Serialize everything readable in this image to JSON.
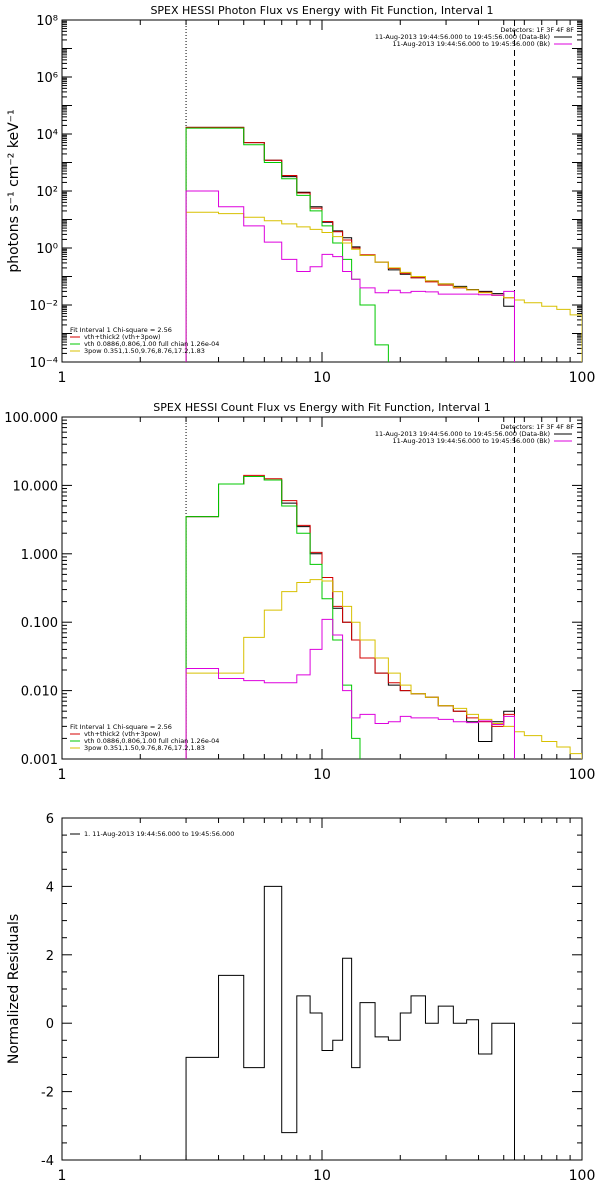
{
  "chart_data": [
    {
      "type": "line",
      "title": "SPEX HESSI Photon Flux vs Energy with Fit Function, Interval 1",
      "ylabel": "photons s⁻¹ cm⁻² keV⁻¹",
      "xlabel": "",
      "xscale": "log",
      "yscale": "log",
      "xlim": [
        1,
        100
      ],
      "ylim": [
        0.0001,
        100000000
      ],
      "x_tick_labels": [
        "1",
        "10",
        "100"
      ],
      "y_tick_labels": [
        "10⁻⁴",
        "10⁻²",
        "10⁰",
        "10²",
        "10⁴",
        "10⁶",
        "10⁸"
      ],
      "detectors_label": "Detectors: 1F 3F 4F 8F",
      "legend_right": [
        {
          "text": "11-Aug-2013 19:44:56.000 to 19:45:56.000 (Data-Bk)",
          "color": "#000000"
        },
        {
          "text": "11-Aug-2013 19:44:56.000 to 19:45:56.000 (Bk)",
          "color": "#dd00dd"
        }
      ],
      "legend_left": [
        {
          "text": "Fit Interval  1    Chi-square = 2.56",
          "color": null
        },
        {
          "text": "vth+thick2 (vth+3pow)",
          "color": "#d40000"
        },
        {
          "text": "vth 0.0886,0.806,1.00  full chian 1.26e-04",
          "color": "#00c800"
        },
        {
          "text": "3pow 0.351,1.50,9.76,8.76,17.2,1.83",
          "color": "#d8c000"
        }
      ],
      "vlines": [
        {
          "x": 3.0,
          "style": "dotted"
        },
        {
          "x": 55,
          "style": "dashed"
        }
      ],
      "series": [
        {
          "name": "Data-Bk",
          "color": "#000000",
          "bins": [
            3,
            4,
            5,
            6,
            7,
            8,
            9,
            10,
            11,
            12,
            13,
            14,
            16,
            18,
            20,
            22,
            25,
            28,
            32,
            36,
            40,
            45,
            50,
            55
          ],
          "values": [
            17000,
            17000,
            5000,
            1200,
            320,
            90,
            28,
            8,
            4,
            2.3,
            1.1,
            0.55,
            0.32,
            0.17,
            0.12,
            0.09,
            0.07,
            0.055,
            0.045,
            0.035,
            0.03,
            0.025,
            0.009
          ]
        },
        {
          "name": "Fit",
          "color": "#d40000",
          "bins": [
            3,
            4,
            5,
            6,
            7,
            8,
            9,
            10,
            11,
            12,
            13,
            14,
            16,
            18,
            20,
            22,
            25,
            28,
            32,
            36,
            40,
            45,
            50,
            55
          ],
          "values": [
            17000,
            17000,
            5000,
            1200,
            350,
            85,
            25,
            8.5,
            3.7,
            1.9,
            1.0,
            0.58,
            0.32,
            0.19,
            0.13,
            0.09,
            0.065,
            0.05,
            0.04,
            0.034,
            0.028,
            0.022,
            0.018
          ]
        },
        {
          "name": "vth",
          "color": "#00c800",
          "bins": [
            3,
            4,
            5,
            6,
            7,
            8,
            9,
            10,
            11,
            12,
            13,
            14,
            16,
            18
          ],
          "values": [
            16000,
            16000,
            4200,
            1000,
            270,
            70,
            20,
            6,
            1.5,
            0.4,
            0.08,
            0.01,
            0.0004
          ]
        },
        {
          "name": "3pow",
          "color": "#d8c000",
          "bins": [
            3,
            4,
            5,
            6,
            7,
            8,
            9,
            10,
            11,
            12,
            13,
            14,
            16,
            18,
            20,
            22,
            25,
            28,
            32,
            36,
            40,
            45,
            50,
            55,
            60,
            70,
            80,
            90,
            100
          ],
          "values": [
            18,
            16,
            12,
            9,
            7,
            5.5,
            4.5,
            3.5,
            2.5,
            1.5,
            0.9,
            0.55,
            0.32,
            0.2,
            0.14,
            0.1,
            0.07,
            0.055,
            0.042,
            0.034,
            0.027,
            0.022,
            0.018,
            0.015,
            0.012,
            0.009,
            0.007,
            0.0045
          ]
        },
        {
          "name": "Bk",
          "color": "#dd00dd",
          "bins": [
            3,
            4,
            5,
            6,
            7,
            8,
            9,
            10,
            11,
            12,
            13,
            14,
            16,
            18,
            20,
            22,
            25,
            28,
            32,
            36,
            40,
            45,
            50,
            55
          ],
          "values": [
            100,
            28,
            6,
            1.6,
            0.4,
            0.15,
            0.22,
            0.6,
            0.5,
            0.15,
            0.08,
            0.04,
            0.027,
            0.033,
            0.027,
            0.03,
            0.029,
            0.024,
            0.024,
            0.024,
            0.023,
            0.022,
            0.03
          ]
        }
      ]
    },
    {
      "type": "line",
      "title": "SPEX HESSI Count Flux vs Energy with Fit Function, Interval 1",
      "ylabel": "",
      "xlabel": "",
      "xscale": "log",
      "yscale": "log",
      "xlim": [
        1,
        100
      ],
      "ylim": [
        0.001,
        100
      ],
      "x_tick_labels": [
        "1",
        "10",
        "100"
      ],
      "y_tick_labels": [
        "0.001",
        "0.010",
        "0.100",
        "1.000",
        "10.000",
        "100.000"
      ],
      "detectors_label": "Detectors: 1F 3F 4F 8F",
      "legend_right": [
        {
          "text": "11-Aug-2013 19:44:56.000 to 19:45:56.000 (Data-Bk)",
          "color": "#000000"
        },
        {
          "text": "11-Aug-2013 19:44:56.000 to 19:45:56.000 (Bk)",
          "color": "#dd00dd"
        }
      ],
      "legend_left": [
        {
          "text": "Fit Interval  1    Chi-square = 2.56",
          "color": null
        },
        {
          "text": "vth+thick2 (vth+3pow)",
          "color": "#d40000"
        },
        {
          "text": "vth 0.0886,0.806,1.00  full chian 1.26e-04",
          "color": "#00c800"
        },
        {
          "text": "3pow 0.351,1.50,9.76,8.76,17.2,1.83",
          "color": "#d8c000"
        }
      ],
      "vlines": [
        {
          "x": 3.0,
          "style": "dotted"
        },
        {
          "x": 55,
          "style": "dashed"
        }
      ],
      "series": [
        {
          "name": "Data-Bk",
          "color": "#000000",
          "bins": [
            3,
            4,
            5,
            6,
            7,
            8,
            9,
            10,
            11,
            12,
            13,
            14,
            16,
            18,
            20,
            22,
            25,
            28,
            32,
            36,
            40,
            45,
            50,
            55
          ],
          "values": [
            3.5,
            10.5,
            13.5,
            12,
            5.5,
            2.5,
            1,
            0.4,
            0.16,
            0.1,
            0.055,
            0.03,
            0.018,
            0.012,
            0.01,
            0.009,
            0.008,
            0.006,
            0.005,
            0.0035,
            0.0018,
            0.0035,
            0.005
          ]
        },
        {
          "name": "Fit",
          "color": "#d40000",
          "bins": [
            3,
            4,
            5,
            6,
            7,
            8,
            9,
            10,
            11,
            12,
            13,
            14,
            16,
            18,
            20,
            22,
            25,
            28,
            32,
            36,
            40,
            45,
            50,
            55
          ],
          "values": [
            3.5,
            10.5,
            14,
            12.5,
            6,
            2.6,
            1.05,
            0.45,
            0.17,
            0.1,
            0.055,
            0.03,
            0.018,
            0.013,
            0.01,
            0.009,
            0.008,
            0.006,
            0.005,
            0.004,
            0.0035,
            0.003,
            0.0045
          ]
        },
        {
          "name": "vth",
          "color": "#00c800",
          "bins": [
            3,
            4,
            5,
            6,
            7,
            8,
            9,
            10,
            11,
            12,
            13,
            14
          ],
          "values": [
            3.5,
            10.5,
            13.5,
            12,
            5,
            2,
            0.7,
            0.22,
            0.055,
            0.012,
            0.002
          ]
        },
        {
          "name": "3pow",
          "color": "#d8c000",
          "bins": [
            3,
            4,
            5,
            6,
            7,
            8,
            9,
            10,
            11,
            12,
            13,
            14,
            16,
            18,
            20,
            22,
            25,
            28,
            32,
            36,
            40,
            45,
            50,
            55,
            60,
            70,
            80,
            90,
            100
          ],
          "values": [
            0.018,
            0.018,
            0.06,
            0.15,
            0.28,
            0.38,
            0.42,
            0.4,
            0.28,
            0.17,
            0.1,
            0.055,
            0.03,
            0.018,
            0.012,
            0.009,
            0.008,
            0.006,
            0.0055,
            0.0045,
            0.0038,
            0.0033,
            0.003,
            0.0025,
            0.0022,
            0.0018,
            0.0015,
            0.0012
          ]
        },
        {
          "name": "Bk",
          "color": "#dd00dd",
          "bins": [
            3,
            4,
            5,
            6,
            7,
            8,
            9,
            10,
            11,
            12,
            13,
            14,
            16,
            18,
            20,
            22,
            25,
            28,
            32,
            36,
            40,
            45,
            50,
            55
          ],
          "values": [
            0.021,
            0.015,
            0.014,
            0.013,
            0.013,
            0.017,
            0.04,
            0.11,
            0.065,
            0.01,
            0.004,
            0.0045,
            0.0033,
            0.0035,
            0.0042,
            0.004,
            0.004,
            0.0038,
            0.0035,
            0.0034,
            0.0036,
            0.0032,
            0.0042
          ]
        }
      ]
    },
    {
      "type": "line",
      "title": "",
      "ylabel": "Normalized Residuals",
      "xlabel": "",
      "xscale": "log",
      "yscale": "linear",
      "xlim": [
        1,
        100
      ],
      "ylim": [
        -4,
        6
      ],
      "x_tick_labels": [
        "1",
        "10",
        "100"
      ],
      "y_tick_labels": [
        "-4",
        "-2",
        "0",
        "2",
        "4",
        "6"
      ],
      "legend_left": [
        {
          "text": "1. 11-Aug-2013 19:44:56.000 to 19:45:56.000",
          "color": "#000000"
        }
      ],
      "series": [
        {
          "name": "1. 11-Aug-2013 19:44:56.000 to 19:45:56.000",
          "color": "#000000",
          "bins": [
            3,
            4,
            5,
            6,
            7,
            8,
            9,
            10,
            11,
            12,
            13,
            14,
            16,
            18,
            20,
            22,
            25,
            28,
            32,
            36,
            40,
            45,
            50,
            55
          ],
          "values": [
            -1.0,
            1.4,
            -1.3,
            4.0,
            -3.2,
            0.8,
            0.3,
            -0.8,
            -0.5,
            1.9,
            -1.3,
            0.6,
            -0.4,
            -0.5,
            0.3,
            0.8,
            0.0,
            0.5,
            0.0,
            0.1,
            -0.9,
            0.0,
            0.0
          ],
          "drop_to": -4
        }
      ]
    }
  ]
}
